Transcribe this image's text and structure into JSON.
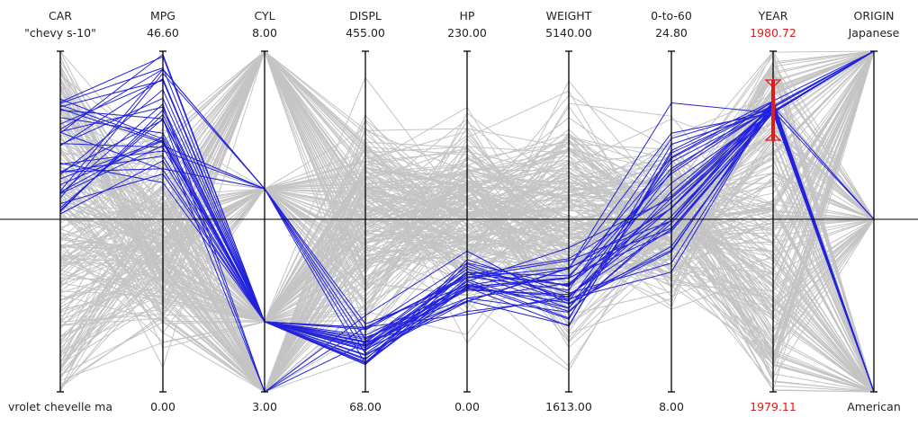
{
  "chart_data": {
    "type": "parallel-coordinates",
    "title": "",
    "axes": [
      {
        "name": "CAR",
        "max_label": "\"chevy s-10\"",
        "min_label": "vrolet chevelle ma"
      },
      {
        "name": "MPG",
        "max_label": "46.60",
        "min_label": "0.00",
        "max": 46.6,
        "min": 0.0
      },
      {
        "name": "CYL",
        "max_label": "8.00",
        "min_label": "3.00",
        "max": 8.0,
        "min": 3.0
      },
      {
        "name": "DISPL",
        "max_label": "455.00",
        "min_label": "68.00",
        "max": 455.0,
        "min": 68.0
      },
      {
        "name": "HP",
        "max_label": "230.00",
        "min_label": "0.00",
        "max": 230.0,
        "min": 0.0
      },
      {
        "name": "WEIGHT",
        "max_label": "5140.00",
        "min_label": "1613.00",
        "max": 5140.0,
        "min": 1613.0
      },
      {
        "name": "0-to-60",
        "max_label": "24.80",
        "min_label": "8.00",
        "max": 24.8,
        "min": 8.0
      },
      {
        "name": "YEAR",
        "max_label": "1980.72",
        "min_label": "1979.11",
        "max": 1980.72,
        "min": 1979.11,
        "highlighted": true
      },
      {
        "name": "ORIGIN",
        "max_label": "Japanese",
        "min_label": "American"
      }
    ],
    "brush": {
      "axis": "YEAR",
      "selected_range": "approximately 1980"
    },
    "colors": {
      "selected": "#2222dd",
      "context": "#c4c4c4",
      "axis": "#000000",
      "brush": "#e01b1b",
      "highlight_label": "#e01b1b"
    }
  }
}
